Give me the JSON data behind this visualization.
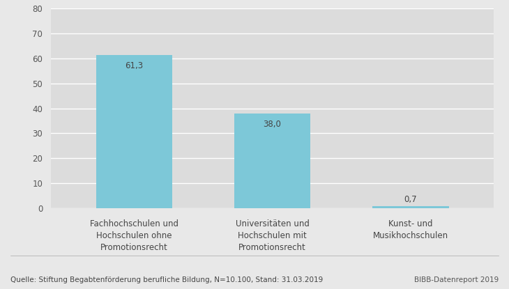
{
  "categories": [
    "Fachhochschulen und\nHochschulen ohne\nPromotionsrecht",
    "Universitäten und\nHochschulen mit\nPromotionsrecht",
    "Kunst- und\nMusikhochschulen"
  ],
  "values": [
    61.3,
    38.0,
    0.7
  ],
  "bar_color": "#7DC8D8",
  "fig_bg_color": "#E8E8E8",
  "plot_bg_color": "#DCDCDC",
  "ylim": [
    0,
    80
  ],
  "yticks": [
    0,
    10,
    20,
    30,
    40,
    50,
    60,
    70,
    80
  ],
  "value_labels": [
    "61,3",
    "38,0",
    "0,7"
  ],
  "footer_left": "Quelle: Stiftung Begabtenförderung berufliche Bildung, N=10.100, Stand: 31.03.2019",
  "footer_right": "BIBB-Datenreport 2019",
  "xlabel_fontsize": 8.5,
  "value_fontsize": 8.5,
  "ytick_fontsize": 8.5,
  "footer_fontsize": 7.5
}
